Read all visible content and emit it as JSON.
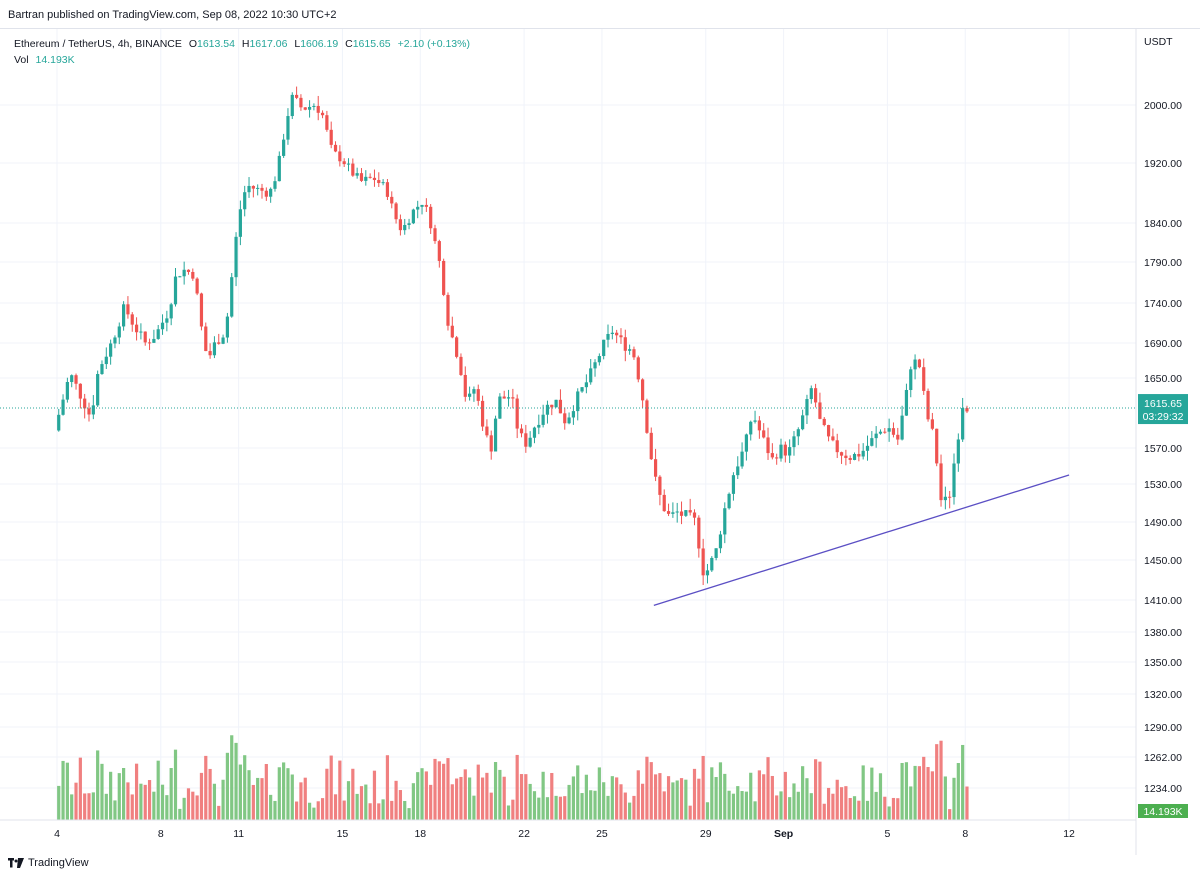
{
  "publisher_line": "Bartran published on TradingView.com, Sep 08, 2022 10:30 UTC+2",
  "footer": {
    "brand": "TradingView"
  },
  "legend": {
    "symbol": "Ethereum / TetherUS, 4h, BINANCE",
    "o_label": "O",
    "o": "1613.54",
    "h_label": "H",
    "h": "1617.06",
    "l_label": "L",
    "l": "1606.19",
    "c_label": "C",
    "c": "1615.65",
    "change": "+2.10 (+0.13%)",
    "vol_label": "Vol",
    "vol": "14.193K"
  },
  "colors": {
    "up": "#26a69a",
    "down": "#ef5350",
    "vol_up": "#81c784",
    "vol_down": "#f08080",
    "trendline": "#5b4fc4",
    "price_badge": "#26a69a"
  },
  "chart_data": {
    "type": "candlestick",
    "currency": "USDT",
    "price_axis_ticks": [
      "2000.00",
      "1920.00",
      "1840.00",
      "1790.00",
      "1740.00",
      "1690.00",
      "1650.00",
      "1570.00",
      "1530.00",
      "1490.00",
      "1450.00",
      "1410.00",
      "1380.00",
      "1350.00",
      "1320.00",
      "1290.00",
      "1262.00",
      "1234.00"
    ],
    "x_ticks": [
      "4",
      "8",
      "11",
      "15",
      "18",
      "22",
      "25",
      "29",
      "Sep",
      "5",
      "8",
      "12"
    ],
    "last_price": "1615.65",
    "countdown": "03:29:32",
    "last_volume": "14.193K",
    "ylim": [
      1395,
      2050
    ],
    "waypoints": [
      [
        3.9,
        1590
      ],
      [
        4.5,
        1655
      ],
      [
        5.0,
        1625
      ],
      [
        5.3,
        1605
      ],
      [
        5.6,
        1660
      ],
      [
        6.1,
        1690
      ],
      [
        6.6,
        1735
      ],
      [
        7.0,
        1710
      ],
      [
        7.4,
        1690
      ],
      [
        7.8,
        1700
      ],
      [
        8.3,
        1730
      ],
      [
        8.6,
        1775
      ],
      [
        8.9,
        1780
      ],
      [
        9.3,
        1775
      ],
      [
        9.5,
        1720
      ],
      [
        9.8,
        1670
      ],
      [
        10.1,
        1690
      ],
      [
        10.5,
        1705
      ],
      [
        10.8,
        1790
      ],
      [
        11.0,
        1850
      ],
      [
        11.3,
        1890
      ],
      [
        11.7,
        1885
      ],
      [
        12.2,
        1880
      ],
      [
        12.5,
        1910
      ],
      [
        12.8,
        1970
      ],
      [
        13.0,
        2005
      ],
      [
        13.5,
        1995
      ],
      [
        13.9,
        2000
      ],
      [
        14.2,
        1990
      ],
      [
        14.6,
        1935
      ],
      [
        15.0,
        1925
      ],
      [
        15.3,
        1910
      ],
      [
        15.7,
        1895
      ],
      [
        16.2,
        1900
      ],
      [
        16.7,
        1885
      ],
      [
        17.0,
        1850
      ],
      [
        17.3,
        1830
      ],
      [
        17.7,
        1855
      ],
      [
        18.1,
        1870
      ],
      [
        18.4,
        1840
      ],
      [
        18.8,
        1780
      ],
      [
        19.1,
        1710
      ],
      [
        19.5,
        1670
      ],
      [
        19.8,
        1620
      ],
      [
        20.1,
        1640
      ],
      [
        20.4,
        1600
      ],
      [
        20.7,
        1565
      ],
      [
        21.0,
        1625
      ],
      [
        21.5,
        1630
      ],
      [
        21.8,
        1585
      ],
      [
        22.1,
        1575
      ],
      [
        22.4,
        1595
      ],
      [
        22.8,
        1615
      ],
      [
        23.2,
        1625
      ],
      [
        23.6,
        1600
      ],
      [
        24.0,
        1625
      ],
      [
        24.5,
        1650
      ],
      [
        24.8,
        1670
      ],
      [
        25.1,
        1690
      ],
      [
        25.4,
        1705
      ],
      [
        25.8,
        1690
      ],
      [
        26.2,
        1680
      ],
      [
        26.5,
        1640
      ],
      [
        26.8,
        1580
      ],
      [
        27.0,
        1540
      ],
      [
        27.3,
        1510
      ],
      [
        27.6,
        1495
      ],
      [
        27.9,
        1500
      ],
      [
        28.3,
        1495
      ],
      [
        28.6,
        1490
      ],
      [
        28.9,
        1440
      ],
      [
        29.1,
        1440
      ],
      [
        29.4,
        1460
      ],
      [
        29.7,
        1500
      ],
      [
        30.1,
        1545
      ],
      [
        30.5,
        1570
      ],
      [
        30.8,
        1610
      ],
      [
        31.2,
        1580
      ],
      [
        31.6,
        1555
      ],
      [
        31.8,
        1570
      ],
      [
        32.2,
        1565
      ],
      [
        32.5,
        1585
      ],
      [
        32.8,
        1610
      ],
      [
        33.1,
        1640
      ],
      [
        33.4,
        1600
      ],
      [
        33.8,
        1575
      ],
      [
        34.2,
        1565
      ],
      [
        34.6,
        1560
      ],
      [
        35.0,
        1565
      ],
      [
        35.3,
        1575
      ],
      [
        35.6,
        1585
      ],
      [
        36.0,
        1595
      ],
      [
        36.4,
        1580
      ],
      [
        36.7,
        1625
      ],
      [
        36.9,
        1665
      ],
      [
        37.2,
        1670
      ],
      [
        37.5,
        1610
      ],
      [
        37.8,
        1580
      ],
      [
        38.1,
        1505
      ],
      [
        38.4,
        1520
      ],
      [
        38.7,
        1580
      ],
      [
        38.9,
        1620
      ],
      [
        39.2,
        1616
      ]
    ],
    "trendline": {
      "start": {
        "x": "Aug 27",
        "y": 1405
      },
      "end": {
        "x": "Sep 12",
        "y": 1540
      }
    }
  }
}
